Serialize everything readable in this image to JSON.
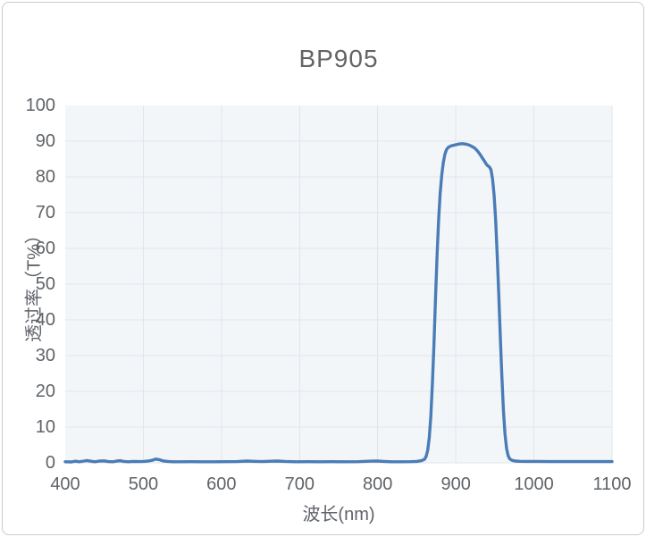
{
  "window": {
    "kind": "spectral-transmission-chart-card"
  },
  "colors": {
    "curve": "#4a7cb7",
    "plot_background": "#f2f6f9",
    "gridline": "#e2e4e9",
    "text": "#5f6368",
    "title_text": "#646464",
    "card_border": "#c9cbcd"
  },
  "chart_data": {
    "type": "line",
    "title": "BP905",
    "xlabel": "波长(nm)",
    "ylabel": "透过率（T%）",
    "xlim": [
      400,
      1100
    ],
    "ylim": [
      0,
      100
    ],
    "x_ticks": [
      400,
      500,
      600,
      700,
      800,
      900,
      1000,
      1100
    ],
    "y_ticks": [
      0,
      10,
      20,
      30,
      40,
      50,
      60,
      70,
      80,
      90,
      100
    ],
    "grid": true,
    "legend": false,
    "series": [
      {
        "name": "BP905",
        "color": "#4a7cb7",
        "points": [
          [
            400,
            0.3
          ],
          [
            408,
            0.25
          ],
          [
            413,
            0.45
          ],
          [
            418,
            0.3
          ],
          [
            424,
            0.5
          ],
          [
            428,
            0.65
          ],
          [
            433,
            0.45
          ],
          [
            438,
            0.3
          ],
          [
            444,
            0.5
          ],
          [
            450,
            0.55
          ],
          [
            455,
            0.35
          ],
          [
            461,
            0.3
          ],
          [
            466,
            0.5
          ],
          [
            470,
            0.6
          ],
          [
            475,
            0.4
          ],
          [
            481,
            0.3
          ],
          [
            487,
            0.4
          ],
          [
            493,
            0.35
          ],
          [
            500,
            0.4
          ],
          [
            506,
            0.5
          ],
          [
            511,
            0.7
          ],
          [
            516,
            1.05
          ],
          [
            520,
            0.9
          ],
          [
            525,
            0.55
          ],
          [
            531,
            0.4
          ],
          [
            538,
            0.3
          ],
          [
            548,
            0.3
          ],
          [
            560,
            0.32
          ],
          [
            575,
            0.3
          ],
          [
            590,
            0.3
          ],
          [
            605,
            0.32
          ],
          [
            620,
            0.35
          ],
          [
            633,
            0.5
          ],
          [
            641,
            0.42
          ],
          [
            652,
            0.35
          ],
          [
            663,
            0.45
          ],
          [
            672,
            0.5
          ],
          [
            681,
            0.38
          ],
          [
            695,
            0.3
          ],
          [
            710,
            0.32
          ],
          [
            725,
            0.3
          ],
          [
            742,
            0.33
          ],
          [
            758,
            0.3
          ],
          [
            775,
            0.32
          ],
          [
            792,
            0.48
          ],
          [
            800,
            0.5
          ],
          [
            808,
            0.4
          ],
          [
            818,
            0.3
          ],
          [
            830,
            0.3
          ],
          [
            842,
            0.32
          ],
          [
            850,
            0.4
          ],
          [
            856,
            0.6
          ],
          [
            860,
            1
          ],
          [
            862,
            1.8
          ],
          [
            864,
            3.5
          ],
          [
            866,
            7
          ],
          [
            868,
            13
          ],
          [
            870,
            22
          ],
          [
            872,
            33
          ],
          [
            874,
            46
          ],
          [
            876,
            58
          ],
          [
            878,
            68
          ],
          [
            880,
            75.5
          ],
          [
            882,
            80.5
          ],
          [
            884,
            84
          ],
          [
            886,
            86.3
          ],
          [
            888,
            87.6
          ],
          [
            890,
            88.2
          ],
          [
            893,
            88.6
          ],
          [
            896,
            88.8
          ],
          [
            900,
            89
          ],
          [
            904,
            89.2
          ],
          [
            908,
            89.3
          ],
          [
            912,
            89.2
          ],
          [
            916,
            89
          ],
          [
            920,
            88.6
          ],
          [
            924,
            88.1
          ],
          [
            928,
            87.2
          ],
          [
            931,
            86.3
          ],
          [
            934,
            85.3
          ],
          [
            937,
            84.3
          ],
          [
            939,
            83.6
          ],
          [
            941,
            83.1
          ],
          [
            943,
            82.8
          ],
          [
            945,
            82
          ],
          [
            947,
            79.5
          ],
          [
            949,
            75
          ],
          [
            951,
            68
          ],
          [
            953,
            58
          ],
          [
            955,
            47
          ],
          [
            957,
            35
          ],
          [
            959,
            24
          ],
          [
            961,
            14.5
          ],
          [
            963,
            8
          ],
          [
            965,
            4
          ],
          [
            967,
            2
          ],
          [
            969,
            1.1
          ],
          [
            972,
            0.7
          ],
          [
            976,
            0.5
          ],
          [
            982,
            0.42
          ],
          [
            990,
            0.4
          ],
          [
            1005,
            0.38
          ],
          [
            1020,
            0.36
          ],
          [
            1040,
            0.35
          ],
          [
            1060,
            0.35
          ],
          [
            1080,
            0.35
          ],
          [
            1100,
            0.35
          ]
        ]
      }
    ]
  }
}
